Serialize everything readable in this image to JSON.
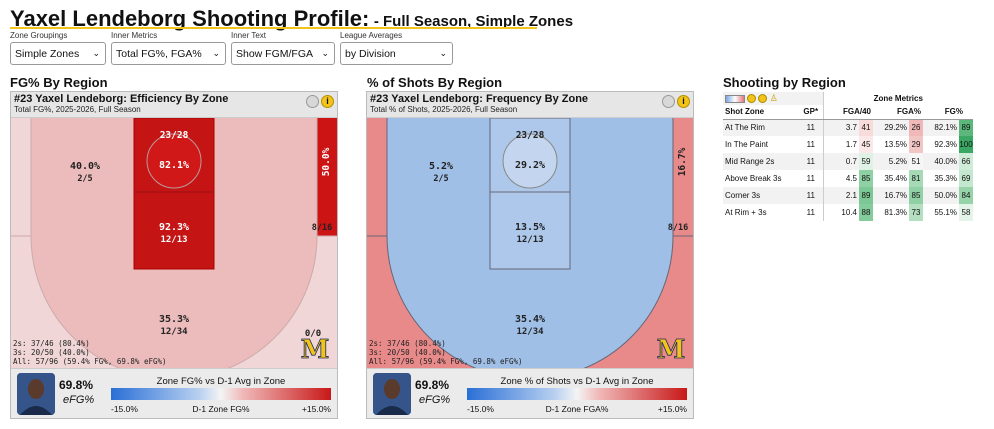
{
  "title": {
    "main": "Yaxel Lendeborg Shooting Profile:",
    "sub": "- Full Season, Simple Zones"
  },
  "controls": [
    {
      "label": "Zone Groupings",
      "value": "Simple Zones"
    },
    {
      "label": "Inner Metrics",
      "value": "Total FG%, FGA%"
    },
    {
      "label": "Inner Text",
      "value": "Show FGM/FGA"
    },
    {
      "label": "League Averages",
      "value": "by Division"
    }
  ],
  "sections": {
    "left": "FG% By Region",
    "middle": "% of Shots By Region",
    "right": "Shooting by Region"
  },
  "efficiency": {
    "title": "#23 Yaxel Lendeborg: Efficiency By Zone",
    "subtitle": "Total FG%, 2025-2026, Full Season",
    "zones": {
      "rim": {
        "frac": "23/28",
        "pct": "82.1%"
      },
      "paint": {
        "pct": "92.3%",
        "frac": "12/13"
      },
      "mid_left": {
        "pct": "40.0%",
        "frac": "2/5"
      },
      "corner_right": {
        "pct": "50.0%",
        "frac": "8/16"
      },
      "corner_left": {
        "frac": "0/0"
      },
      "above_break": {
        "pct": "35.3%",
        "frac": "12/34"
      }
    },
    "stats": [
      "2s: 37/46 (80.4%)",
      "3s: 20/50 (40.0%)",
      "All: 57/96 (59.4% FG%, 69.8% eFG%)"
    ],
    "efg_value": "69.8%",
    "efg_label": "eFG%",
    "legend_title": "Zone FG% vs D-1 Avg in Zone",
    "legend_min": "-15.0%",
    "legend_mid": "D-1 Zone FG%",
    "legend_max": "+15.0%",
    "logo": "M"
  },
  "frequency": {
    "title": "#23 Yaxel Lendeborg: Frequency By Zone",
    "subtitle": "Total % of Shots, 2025-2026, Full Season",
    "zones": {
      "rim": {
        "frac": "23/28",
        "pct": "29.2%"
      },
      "paint": {
        "pct": "13.5%",
        "frac": "12/13"
      },
      "mid_left": {
        "pct": "5.2%",
        "frac": "2/5"
      },
      "corner_right": {
        "pct": "16.7%",
        "frac": "8/16"
      },
      "above_break": {
        "pct": "35.4%",
        "frac": "12/34"
      }
    },
    "stats": [
      "2s: 37/46 (80.4%)",
      "3s: 20/50 (40.0%)",
      "All: 57/96 (59.4% FG%, 69.8% eFG%)"
    ],
    "efg_value": "69.8%",
    "efg_label": "eFG%",
    "legend_title": "Zone % of Shots vs D-1 Avg in Zone",
    "legend_min": "-15.0%",
    "legend_mid": "D-1 Zone FGA%",
    "legend_max": "+15.0%",
    "logo": "M"
  },
  "table": {
    "group_header": "Zone Metrics",
    "headers": [
      "Shot Zone",
      "GP*",
      "FGA/40",
      "FGA%",
      "FG%"
    ],
    "rows": [
      {
        "zone": "At The Rim",
        "gp": "11",
        "fga40": "3.7",
        "fga40_rk": "41",
        "fgap": "29.2%",
        "fgap_rk": "26",
        "fg": "82.1%",
        "fg_rk": "89"
      },
      {
        "zone": "In The Paint",
        "gp": "11",
        "fga40": "1.7",
        "fga40_rk": "45",
        "fgap": "13.5%",
        "fgap_rk": "29",
        "fg": "92.3%",
        "fg_rk": "100"
      },
      {
        "zone": "Mid Range 2s",
        "gp": "11",
        "fga40": "0.7",
        "fga40_rk": "59",
        "fgap": "5.2%",
        "fgap_rk": "51",
        "fg": "40.0%",
        "fg_rk": "66"
      },
      {
        "zone": "Above Break 3s",
        "gp": "11",
        "fga40": "4.5",
        "fga40_rk": "85",
        "fgap": "35.4%",
        "fgap_rk": "81",
        "fg": "35.3%",
        "fg_rk": "69"
      },
      {
        "zone": "Corner 3s",
        "gp": "11",
        "fga40": "2.1",
        "fga40_rk": "89",
        "fgap": "16.7%",
        "fgap_rk": "85",
        "fg": "50.0%",
        "fg_rk": "84"
      },
      {
        "zone": "At Rim + 3s",
        "gp": "11",
        "fga40": "10.4",
        "fga40_rk": "88",
        "fgap": "81.3%",
        "fgap_rk": "73",
        "fg": "55.1%",
        "fg_rk": "58"
      }
    ]
  }
}
